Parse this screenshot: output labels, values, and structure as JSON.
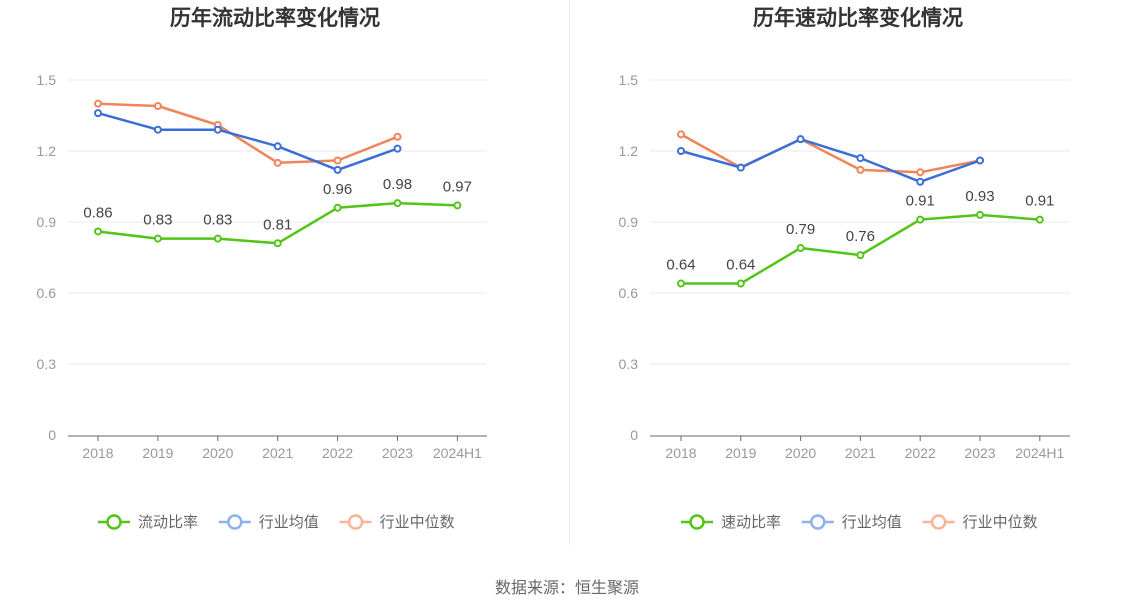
{
  "chart_data": [
    {
      "type": "line",
      "title": "历年流动比率变化情况",
      "categories": [
        "2018",
        "2019",
        "2020",
        "2021",
        "2022",
        "2023",
        "2024H1"
      ],
      "ylim": [
        0,
        1.5
      ],
      "yticks": [
        "0",
        "0.3",
        "0.6",
        "0.9",
        "1.2",
        "1.5"
      ],
      "grid": true,
      "legend_position": "bottom",
      "series": [
        {
          "name": "流动比率",
          "color": "#52c41a",
          "values": [
            0.86,
            0.83,
            0.83,
            0.81,
            0.96,
            0.98,
            0.97
          ],
          "labels": [
            "0.86",
            "0.83",
            "0.83",
            "0.81",
            "0.96",
            "0.98",
            "0.97"
          ]
        },
        {
          "name": "行业均值",
          "color": "#3a6fd8",
          "values": [
            1.36,
            1.29,
            1.29,
            1.22,
            1.12,
            1.21,
            null
          ]
        },
        {
          "name": "行业中位数",
          "color": "#f0855a",
          "values": [
            1.4,
            1.39,
            1.31,
            1.15,
            1.16,
            1.26,
            null
          ]
        }
      ]
    },
    {
      "type": "line",
      "title": "历年速动比率变化情况",
      "categories": [
        "2018",
        "2019",
        "2020",
        "2021",
        "2022",
        "2023",
        "2024H1"
      ],
      "ylim": [
        0,
        1.5
      ],
      "yticks": [
        "0",
        "0.3",
        "0.6",
        "0.9",
        "1.2",
        "1.5"
      ],
      "grid": true,
      "legend_position": "bottom",
      "series": [
        {
          "name": "速动比率",
          "color": "#52c41a",
          "values": [
            0.64,
            0.64,
            0.79,
            0.76,
            0.91,
            0.93,
            0.91
          ],
          "labels": [
            "0.64",
            "0.64",
            "0.79",
            "0.76",
            "0.91",
            "0.93",
            "0.91"
          ]
        },
        {
          "name": "行业均值",
          "color": "#3a6fd8",
          "values": [
            1.2,
            1.13,
            1.25,
            1.17,
            1.07,
            1.16,
            null
          ]
        },
        {
          "name": "行业中位数",
          "color": "#f0855a",
          "values": [
            1.27,
            1.13,
            1.25,
            1.12,
            1.11,
            1.16,
            null
          ]
        }
      ]
    }
  ],
  "footer": {
    "source": "数据来源：恒生聚源"
  }
}
